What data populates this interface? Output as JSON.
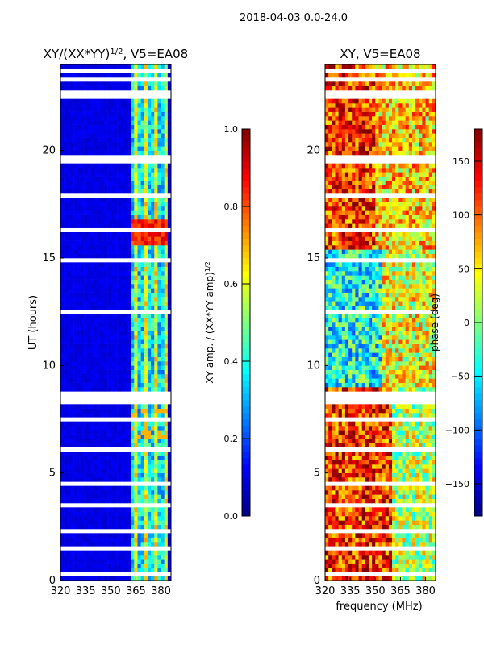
{
  "suptitle": "2018-04-03 0.0-24.0",
  "xlabel_shared": "frequency (MHz)",
  "chart_data": [
    {
      "type": "heatmap",
      "title_main": "XY/(XX*YY)",
      "title_sup": "1/2",
      "title_rest": ", V5=EA08",
      "ylabel": "UT (hours)",
      "xlim": [
        320,
        386
      ],
      "ylim": [
        0,
        24
      ],
      "xticks": [
        320,
        335,
        350,
        365,
        380
      ],
      "yticks": [
        0,
        5,
        10,
        15,
        20
      ],
      "colormap": "jet",
      "colorbar": {
        "label_main": "XY amp. / (XX*YY amp)",
        "label_sup": "1/2",
        "range": [
          0,
          1
        ],
        "ticks": [
          "0.0",
          "0.2",
          "0.4",
          "0.6",
          "0.8",
          "1.0"
        ],
        "tick_values": [
          0,
          0.2,
          0.4,
          0.6,
          0.8,
          1.0
        ]
      },
      "model": {
        "base_value": 0.08,
        "bright_band_freq": [
          362,
          384
        ],
        "bright_band_value": 0.45,
        "hot_block": {
          "ut": [
            15.6,
            16.9
          ],
          "freq": [
            362,
            382
          ],
          "value": 0.85
        },
        "warm_block": {
          "ut": [
            6.6,
            8.0
          ],
          "freq": [
            362,
            382
          ],
          "value": 0.7
        }
      }
    },
    {
      "type": "heatmap",
      "title_main": "XY, V5=EA08",
      "title_sup": "",
      "title_rest": "",
      "ylabel": "",
      "xlim": [
        320,
        386
      ],
      "ylim": [
        0,
        24
      ],
      "xticks": [
        320,
        335,
        350,
        365,
        380
      ],
      "yticks": [
        0,
        5,
        10,
        15,
        20
      ],
      "colormap": "jet",
      "colorbar": {
        "label_main": "phase (deg)",
        "label_sup": "",
        "range": [
          -180,
          180
        ],
        "ticks": [
          "−150",
          "−100",
          "−50",
          "0",
          "50",
          "100",
          "150"
        ],
        "tick_values": [
          -150,
          -100,
          -50,
          0,
          50,
          100,
          150
        ]
      },
      "model": {
        "regions": [
          {
            "ut": [
              0,
              9
            ],
            "freq": [
              320,
              360
            ],
            "phase": 120
          },
          {
            "ut": [
              0,
              9
            ],
            "freq": [
              360,
              386
            ],
            "phase": 20
          },
          {
            "ut": [
              9,
              15.5
            ],
            "freq": [
              320,
              355
            ],
            "phase": -40
          },
          {
            "ut": [
              9,
              15.5
            ],
            "freq": [
              355,
              386
            ],
            "phase": 40
          },
          {
            "ut": [
              15.5,
              24
            ],
            "freq": [
              320,
              350
            ],
            "phase": 120
          },
          {
            "ut": [
              15.5,
              24
            ],
            "freq": [
              350,
              386
            ],
            "phase": 60
          }
        ]
      }
    }
  ],
  "flagged_ut": [
    [
      23.7,
      23.8
    ],
    [
      23.3,
      23.38
    ],
    [
      22.5,
      22.7
    ],
    [
      19.35,
      19.8
    ],
    [
      18.3,
      18.35
    ],
    [
      17.9,
      17.95
    ],
    [
      16.15,
      16.3
    ],
    [
      15.55,
      15.65
    ],
    [
      14.8,
      15.0
    ],
    [
      12.4,
      12.55
    ],
    [
      11.2,
      11.25
    ],
    [
      8.3,
      8.7
    ],
    [
      7.5,
      7.58
    ],
    [
      6.1,
      6.15
    ],
    [
      5.7,
      5.78
    ],
    [
      5.0,
      5.05
    ],
    [
      4.5,
      4.56
    ],
    [
      3.5,
      3.56
    ],
    [
      2.3,
      2.35
    ],
    [
      1.5,
      1.58
    ],
    [
      0.6,
      0.68
    ],
    [
      0.3,
      0.36
    ]
  ]
}
